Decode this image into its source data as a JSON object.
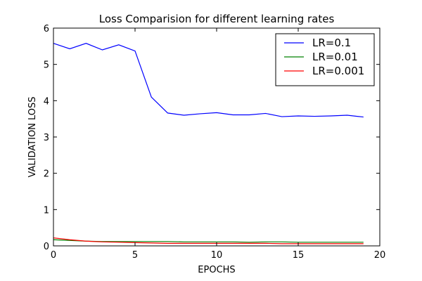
{
  "chart_data": {
    "type": "line",
    "title": "Loss Comparision for different learning rates",
    "xlabel": "EPOCHS",
    "ylabel": "VALIDATION LOSS",
    "xlim": [
      0,
      20
    ],
    "ylim": [
      0,
      6
    ],
    "xticks": [
      0,
      5,
      10,
      15,
      20
    ],
    "yticks": [
      0,
      1,
      2,
      3,
      4,
      5,
      6
    ],
    "grid": false,
    "legend_position": "top-right",
    "x": [
      0,
      1,
      2,
      3,
      4,
      5,
      6,
      7,
      8,
      9,
      10,
      11,
      12,
      13,
      14,
      15,
      16,
      17,
      18,
      19
    ],
    "series": [
      {
        "name": "LR=0.1",
        "color": "#0000ff",
        "values": [
          5.58,
          5.43,
          5.58,
          5.4,
          5.54,
          5.37,
          4.1,
          3.66,
          3.6,
          3.64,
          3.67,
          3.61,
          3.61,
          3.65,
          3.56,
          3.58,
          3.57,
          3.58,
          3.6,
          3.55
        ]
      },
      {
        "name": "LR=0.01",
        "color": "#008000",
        "values": [
          0.17,
          0.15,
          0.13,
          0.12,
          0.12,
          0.12,
          0.12,
          0.12,
          0.11,
          0.11,
          0.11,
          0.11,
          0.1,
          0.11,
          0.11,
          0.1,
          0.1,
          0.1,
          0.1,
          0.1
        ]
      },
      {
        "name": "LR=0.001",
        "color": "#ff0000",
        "values": [
          0.22,
          0.17,
          0.13,
          0.11,
          0.1,
          0.09,
          0.08,
          0.07,
          0.07,
          0.07,
          0.07,
          0.07,
          0.07,
          0.07,
          0.06,
          0.06,
          0.06,
          0.06,
          0.06,
          0.06
        ]
      }
    ]
  }
}
